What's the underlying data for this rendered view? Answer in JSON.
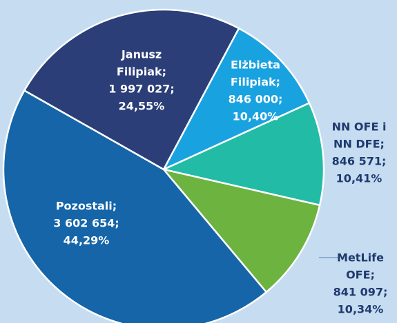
{
  "chart_data": {
    "type": "pie",
    "categories": [
      [
        "Janusz",
        "Filipiak;"
      ],
      [
        "Elżbieta",
        "Filipiak;"
      ],
      [
        "NN OFE i",
        "NN DFE;"
      ],
      [
        "MetLife",
        "OFE;"
      ],
      [
        "Pozostali;"
      ]
    ],
    "shares": [
      "1 997 027;",
      "846 000;",
      "846 571;",
      "841 097;",
      "3 602 654;"
    ],
    "values": [
      24.55,
      10.4,
      10.41,
      10.34,
      44.29
    ],
    "value_labels": [
      "24,55%",
      "10,40%",
      "10,41%",
      "10,34%",
      "44,29%"
    ],
    "colors": [
      "#2b3e78",
      "#19a2e0",
      "#22bba6",
      "#6cb33f",
      "#1565a8"
    ]
  }
}
